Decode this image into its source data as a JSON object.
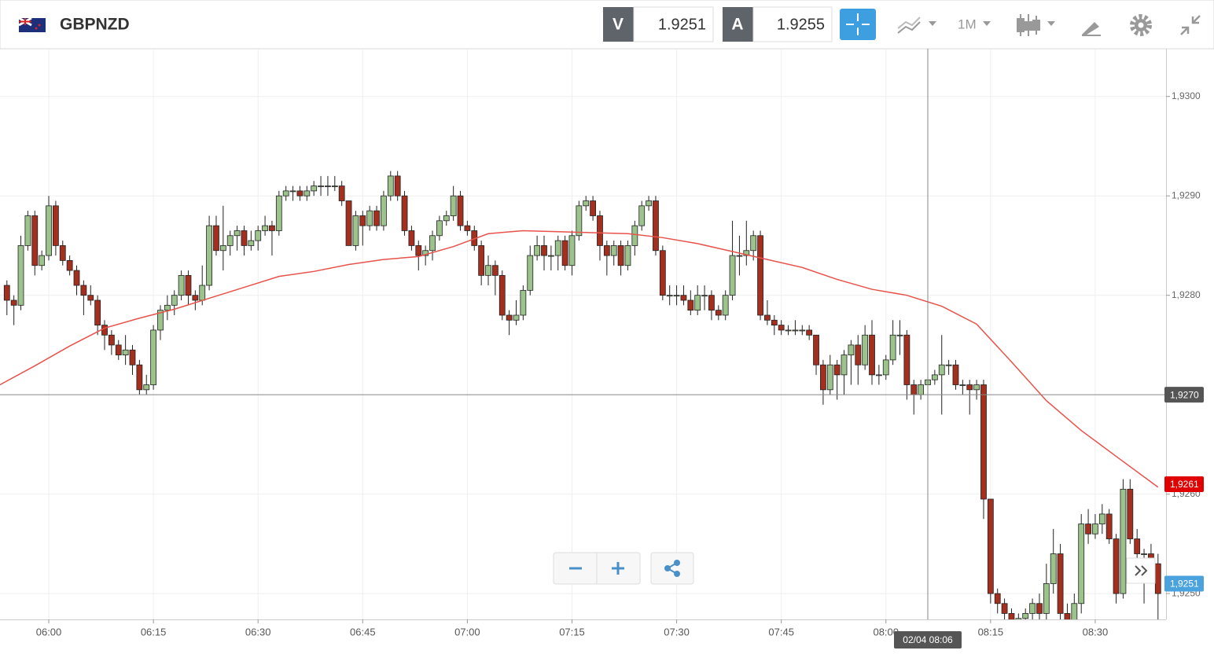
{
  "header": {
    "symbol": "GBPNZD",
    "sell_label": "V",
    "sell_price": 1.9251,
    "buy_label": "A",
    "buy_price": 1.9255,
    "timeframe": "1M"
  },
  "chart_data": {
    "type": "candlestick",
    "x": [
      354,
      355,
      356,
      357,
      358,
      359,
      360,
      361,
      362,
      363,
      364,
      365,
      366,
      367,
      368,
      369,
      370,
      371,
      372,
      373,
      374,
      375,
      376,
      377,
      378,
      379,
      380,
      381,
      382,
      383,
      384,
      385,
      386,
      387,
      388,
      389,
      390,
      391,
      392,
      393,
      394,
      395,
      396,
      397,
      398,
      399,
      400,
      401,
      402,
      403,
      404,
      405,
      406,
      407,
      408,
      409,
      410,
      411,
      412,
      413,
      414,
      415,
      416,
      417,
      418,
      419,
      420,
      421,
      422,
      423,
      424,
      425,
      426,
      427,
      428,
      429,
      430,
      431,
      432,
      433,
      434,
      435,
      436,
      437,
      438,
      439,
      440,
      441,
      442,
      443,
      444,
      445,
      446,
      447,
      448,
      449,
      450,
      451,
      452,
      453,
      454,
      455,
      456,
      457,
      458,
      459,
      460,
      461,
      462,
      463,
      464,
      465,
      466,
      467,
      468,
      469,
      470,
      471,
      472,
      473,
      474,
      475,
      476,
      477,
      478,
      479,
      480,
      481,
      482,
      483,
      484,
      485,
      486,
      487,
      488,
      489,
      490,
      491,
      492,
      493,
      494,
      495,
      496,
      497,
      498,
      499,
      500,
      501,
      502,
      503,
      504,
      505,
      506,
      507,
      508,
      509,
      510,
      511,
      512,
      513,
      514,
      515,
      516,
      517,
      518,
      519
    ],
    "ohlc": [
      [
        1.9281,
        1.92815,
        1.9278,
        1.92795
      ],
      [
        1.92795,
        1.928,
        1.9277,
        1.9279
      ],
      [
        1.9279,
        1.9286,
        1.92785,
        1.9285
      ],
      [
        1.9285,
        1.92885,
        1.92845,
        1.9288
      ],
      [
        1.9288,
        1.92885,
        1.9282,
        1.9283
      ],
      [
        1.9283,
        1.92845,
        1.92825,
        1.9284
      ],
      [
        1.9284,
        1.929,
        1.92835,
        1.9289
      ],
      [
        1.9289,
        1.92895,
        1.9284,
        1.9285
      ],
      [
        1.9285,
        1.92855,
        1.9283,
        1.92835
      ],
      [
        1.92835,
        1.9284,
        1.9282,
        1.92825
      ],
      [
        1.92825,
        1.9283,
        1.928,
        1.9281
      ],
      [
        1.9281,
        1.92815,
        1.9278,
        1.928
      ],
      [
        1.928,
        1.9281,
        1.9279,
        1.92795
      ],
      [
        1.92795,
        1.928,
        1.9276,
        1.9277
      ],
      [
        1.9277,
        1.92775,
        1.92745,
        1.9276
      ],
      [
        1.9276,
        1.92765,
        1.9274,
        1.9275
      ],
      [
        1.9275,
        1.92755,
        1.92735,
        1.9274
      ],
      [
        1.9274,
        1.9276,
        1.9273,
        1.92745
      ],
      [
        1.92745,
        1.9275,
        1.9272,
        1.9273
      ],
      [
        1.9273,
        1.92735,
        1.927,
        1.92705
      ],
      [
        1.92705,
        1.9272,
        1.927,
        1.9271
      ],
      [
        1.9271,
        1.9277,
        1.92705,
        1.92765
      ],
      [
        1.92765,
        1.9279,
        1.92755,
        1.92785
      ],
      [
        1.92785,
        1.928,
        1.92775,
        1.9279
      ],
      [
        1.9279,
        1.92805,
        1.9278,
        1.928
      ],
      [
        1.928,
        1.92825,
        1.92795,
        1.9282
      ],
      [
        1.9282,
        1.92825,
        1.9279,
        1.928
      ],
      [
        1.928,
        1.92805,
        1.92785,
        1.92795
      ],
      [
        1.92795,
        1.9283,
        1.9279,
        1.9281
      ],
      [
        1.9281,
        1.9288,
        1.92805,
        1.9287
      ],
      [
        1.9287,
        1.9288,
        1.9284,
        1.92845
      ],
      [
        1.92845,
        1.9289,
        1.92825,
        1.9285
      ],
      [
        1.9285,
        1.92865,
        1.9284,
        1.9286
      ],
      [
        1.9286,
        1.9287,
        1.92845,
        1.92865
      ],
      [
        1.92865,
        1.9287,
        1.9284,
        1.9285
      ],
      [
        1.9285,
        1.92865,
        1.92845,
        1.92855
      ],
      [
        1.92855,
        1.9287,
        1.92845,
        1.92865
      ],
      [
        1.92865,
        1.9288,
        1.9286,
        1.9287
      ],
      [
        1.9287,
        1.92875,
        1.9284,
        1.92865
      ],
      [
        1.92865,
        1.92905,
        1.9286,
        1.929
      ],
      [
        1.929,
        1.9291,
        1.92895,
        1.92905
      ],
      [
        1.92905,
        1.9291,
        1.92895,
        1.92905
      ],
      [
        1.92905,
        1.9291,
        1.92895,
        1.929
      ],
      [
        1.929,
        1.9291,
        1.92895,
        1.92905
      ],
      [
        1.92905,
        1.92915,
        1.929,
        1.9291
      ],
      [
        1.9291,
        1.9292,
        1.929,
        1.9291
      ],
      [
        1.9291,
        1.9292,
        1.929,
        1.9291
      ],
      [
        1.9291,
        1.9292,
        1.92905,
        1.9291
      ],
      [
        1.9291,
        1.92915,
        1.9289,
        1.92895
      ],
      [
        1.92895,
        1.92895,
        1.9285,
        1.9285
      ],
      [
        1.9285,
        1.92885,
        1.92845,
        1.9288
      ],
      [
        1.9288,
        1.92885,
        1.9285,
        1.9287
      ],
      [
        1.9287,
        1.9289,
        1.92865,
        1.92885
      ],
      [
        1.92885,
        1.9289,
        1.92865,
        1.9287
      ],
      [
        1.9287,
        1.92905,
        1.92865,
        1.929
      ],
      [
        1.929,
        1.92925,
        1.92895,
        1.9292
      ],
      [
        1.9292,
        1.92925,
        1.92895,
        1.929
      ],
      [
        1.929,
        1.92905,
        1.9286,
        1.92865
      ],
      [
        1.92865,
        1.9287,
        1.92845,
        1.9285
      ],
      [
        1.9285,
        1.92855,
        1.92825,
        1.9284
      ],
      [
        1.9284,
        1.9285,
        1.9283,
        1.92845
      ],
      [
        1.92845,
        1.92865,
        1.92835,
        1.9286
      ],
      [
        1.9286,
        1.9288,
        1.92855,
        1.92875
      ],
      [
        1.92875,
        1.92885,
        1.9287,
        1.9288
      ],
      [
        1.9288,
        1.9291,
        1.92875,
        1.929
      ],
      [
        1.929,
        1.92905,
        1.92865,
        1.9287
      ],
      [
        1.9287,
        1.92875,
        1.9286,
        1.92865
      ],
      [
        1.92865,
        1.9287,
        1.92845,
        1.9285
      ],
      [
        1.9285,
        1.92855,
        1.9281,
        1.9282
      ],
      [
        1.9282,
        1.9284,
        1.9281,
        1.9283
      ],
      [
        1.9283,
        1.92835,
        1.928,
        1.9282
      ],
      [
        1.9282,
        1.92825,
        1.92775,
        1.9278
      ],
      [
        1.9278,
        1.92785,
        1.9276,
        1.92775
      ],
      [
        1.92775,
        1.92795,
        1.9277,
        1.9278
      ],
      [
        1.9278,
        1.9281,
        1.92775,
        1.92805
      ],
      [
        1.92805,
        1.9285,
        1.928,
        1.9284
      ],
      [
        1.9284,
        1.9286,
        1.92835,
        1.9285
      ],
      [
        1.9285,
        1.9286,
        1.92825,
        1.9284
      ],
      [
        1.9284,
        1.9285,
        1.92825,
        1.9284
      ],
      [
        1.9284,
        1.9286,
        1.92825,
        1.92855
      ],
      [
        1.92855,
        1.9286,
        1.92825,
        1.9283
      ],
      [
        1.9283,
        1.92865,
        1.9282,
        1.9286
      ],
      [
        1.9286,
        1.92895,
        1.92855,
        1.9289
      ],
      [
        1.9289,
        1.929,
        1.92885,
        1.92895
      ],
      [
        1.92895,
        1.929,
        1.92875,
        1.9288
      ],
      [
        1.9288,
        1.92885,
        1.92835,
        1.9285
      ],
      [
        1.9285,
        1.92855,
        1.9282,
        1.9284
      ],
      [
        1.9284,
        1.92855,
        1.9283,
        1.9285
      ],
      [
        1.9285,
        1.92855,
        1.9282,
        1.9283
      ],
      [
        1.9283,
        1.92855,
        1.92825,
        1.9285
      ],
      [
        1.9285,
        1.92875,
        1.9284,
        1.9287
      ],
      [
        1.9287,
        1.92895,
        1.92865,
        1.9289
      ],
      [
        1.9289,
        1.929,
        1.92885,
        1.92895
      ],
      [
        1.92895,
        1.929,
        1.9284,
        1.92845
      ],
      [
        1.92845,
        1.9285,
        1.92795,
        1.928
      ],
      [
        1.928,
        1.9281,
        1.9279,
        1.928
      ],
      [
        1.928,
        1.9281,
        1.9279,
        1.928
      ],
      [
        1.928,
        1.9281,
        1.9279,
        1.92795
      ],
      [
        1.92795,
        1.92805,
        1.9278,
        1.92785
      ],
      [
        1.92785,
        1.9281,
        1.9278,
        1.928
      ],
      [
        1.928,
        1.9281,
        1.92785,
        1.928
      ],
      [
        1.928,
        1.92805,
        1.92775,
        1.92785
      ],
      [
        1.92785,
        1.9279,
        1.92775,
        1.9278
      ],
      [
        1.9278,
        1.92805,
        1.92775,
        1.928
      ],
      [
        1.928,
        1.92875,
        1.92795,
        1.9284
      ],
      [
        1.9284,
        1.9286,
        1.9282,
        1.9284
      ],
      [
        1.9284,
        1.92875,
        1.9283,
        1.92845
      ],
      [
        1.92845,
        1.92865,
        1.92835,
        1.9286
      ],
      [
        1.9286,
        1.92865,
        1.92775,
        1.9278
      ],
      [
        1.9278,
        1.92795,
        1.9277,
        1.92775
      ],
      [
        1.92775,
        1.9278,
        1.9276,
        1.9277
      ],
      [
        1.9277,
        1.92775,
        1.9276,
        1.92765
      ],
      [
        1.92765,
        1.9277,
        1.9276,
        1.92765
      ],
      [
        1.92765,
        1.92775,
        1.9276,
        1.92765
      ],
      [
        1.92765,
        1.9277,
        1.9276,
        1.92765
      ],
      [
        1.92765,
        1.9277,
        1.92755,
        1.9276
      ],
      [
        1.9276,
        1.9276,
        1.9272,
        1.9273
      ],
      [
        1.9273,
        1.92735,
        1.9269,
        1.92705
      ],
      [
        1.92705,
        1.9274,
        1.927,
        1.9273
      ],
      [
        1.9273,
        1.92735,
        1.92695,
        1.9272
      ],
      [
        1.9272,
        1.92745,
        1.927,
        1.9274
      ],
      [
        1.9274,
        1.92755,
        1.9271,
        1.9275
      ],
      [
        1.9275,
        1.9276,
        1.9271,
        1.9273
      ],
      [
        1.9273,
        1.9277,
        1.92725,
        1.9276
      ],
      [
        1.9276,
        1.92775,
        1.9271,
        1.9272
      ],
      [
        1.9272,
        1.9273,
        1.9271,
        1.9272
      ],
      [
        1.9272,
        1.9274,
        1.92715,
        1.92735
      ],
      [
        1.92735,
        1.92775,
        1.9273,
        1.9276
      ],
      [
        1.9276,
        1.92775,
        1.9274,
        1.9276
      ],
      [
        1.9276,
        1.92765,
        1.92695,
        1.9271
      ],
      [
        1.9271,
        1.92715,
        1.9268,
        1.927
      ],
      [
        1.927,
        1.92715,
        1.92695,
        1.9271
      ],
      [
        1.9271,
        1.9272,
        1.92705,
        1.92715
      ],
      [
        1.92715,
        1.92725,
        1.9271,
        1.9272
      ],
      [
        1.9272,
        1.9276,
        1.9268,
        1.9273
      ],
      [
        1.9273,
        1.92735,
        1.9272,
        1.9273
      ],
      [
        1.9273,
        1.92735,
        1.92705,
        1.9271
      ],
      [
        1.9271,
        1.92715,
        1.927,
        1.9271
      ],
      [
        1.9271,
        1.92715,
        1.9268,
        1.92705
      ],
      [
        1.92705,
        1.92715,
        1.92695,
        1.9271
      ],
      [
        1.9271,
        1.92715,
        1.92575,
        1.92595
      ],
      [
        1.92595,
        1.92595,
        1.9249,
        1.925
      ],
      [
        1.925,
        1.92505,
        1.9248,
        1.9249
      ],
      [
        1.9249,
        1.92495,
        1.9247,
        1.9248
      ],
      [
        1.9248,
        1.92485,
        1.9246,
        1.9247
      ],
      [
        1.9247,
        1.9248,
        1.9246,
        1.92475
      ],
      [
        1.92475,
        1.92485,
        1.9247,
        1.9248
      ],
      [
        1.9248,
        1.92495,
        1.9247,
        1.9249
      ],
      [
        1.9249,
        1.925,
        1.9247,
        1.9248
      ],
      [
        1.9248,
        1.9253,
        1.9247,
        1.9251
      ],
      [
        1.9251,
        1.92565,
        1.925,
        1.9254
      ],
      [
        1.9254,
        1.9255,
        1.9247,
        1.9248
      ],
      [
        1.9248,
        1.9249,
        1.9246,
        1.9247
      ],
      [
        1.9247,
        1.925,
        1.9246,
        1.9249
      ],
      [
        1.9249,
        1.9258,
        1.9248,
        1.9257
      ],
      [
        1.9257,
        1.92585,
        1.9255,
        1.9256
      ],
      [
        1.9256,
        1.9258,
        1.92555,
        1.9257
      ],
      [
        1.9257,
        1.9259,
        1.9256,
        1.9258
      ],
      [
        1.9258,
        1.92585,
        1.9255,
        1.92555
      ],
      [
        1.92555,
        1.9256,
        1.9249,
        1.925
      ],
      [
        1.925,
        1.92615,
        1.92495,
        1.92605
      ],
      [
        1.92605,
        1.92615,
        1.9255,
        1.92555
      ],
      [
        1.92555,
        1.92565,
        1.9253,
        1.9254
      ],
      [
        1.9254,
        1.92545,
        1.9249,
        1.9254
      ],
      [
        1.9254,
        1.9255,
        1.9252,
        1.9253
      ],
      [
        1.9253,
        1.9254,
        1.9247,
        1.925
      ]
    ],
    "up_color": "#9cc38c",
    "down_color": "#a3301f",
    "moving_average": {
      "color": "#e8524a",
      "x": [
        353,
        358,
        363,
        368,
        373,
        378,
        383,
        388,
        393,
        398,
        403,
        408,
        413,
        418,
        423,
        428,
        433,
        438,
        443,
        448,
        453,
        458,
        463,
        468,
        473,
        478,
        483,
        488,
        493,
        498,
        503,
        508,
        513,
        519
      ],
      "values": [
        1.9271,
        1.92729,
        1.92749,
        1.92767,
        1.92777,
        1.92786,
        1.92797,
        1.92808,
        1.92819,
        1.92824,
        1.92831,
        1.92836,
        1.92839,
        1.92849,
        1.92862,
        1.92865,
        1.92864,
        1.92863,
        1.92862,
        1.92858,
        1.92852,
        1.92844,
        1.92836,
        1.92828,
        1.92816,
        1.92806,
        1.928,
        1.92789,
        1.92771,
        1.92733,
        1.92694,
        1.92664,
        1.92638,
        1.92607
      ]
    },
    "xlim": [
      353.01,
      520.15
    ],
    "ylim": [
      1.92474,
      1.93048
    ],
    "xticks": [
      {
        "value": 360,
        "label": "06:00"
      },
      {
        "value": 375,
        "label": "06:15"
      },
      {
        "value": 390,
        "label": "06:30"
      },
      {
        "value": 405,
        "label": "06:45"
      },
      {
        "value": 420,
        "label": "07:00"
      },
      {
        "value": 435,
        "label": "07:15"
      },
      {
        "value": 450,
        "label": "07:30"
      },
      {
        "value": 465,
        "label": "07:45"
      },
      {
        "value": 480,
        "label": "08:00"
      },
      {
        "value": 495,
        "label": "08:15"
      },
      {
        "value": 510,
        "label": "08:30"
      }
    ],
    "yticks": [
      {
        "value": 1.925,
        "label": "1,9250"
      },
      {
        "value": 1.926,
        "label": "1,9260"
      },
      {
        "value": 1.927,
        "label": "1,9270"
      },
      {
        "value": 1.928,
        "label": "1,9280"
      },
      {
        "value": 1.929,
        "label": "1,9290"
      },
      {
        "value": 1.93,
        "label": "1,9300"
      }
    ],
    "grid": true,
    "crosshair": {
      "x": {
        "value": 486,
        "label": "02/04 08:06"
      },
      "y": {
        "value": 1.927,
        "label": "1,9270"
      }
    },
    "price_labels": [
      {
        "value": 1.9261,
        "label": "1,9261",
        "color": "#e00000"
      },
      {
        "value": 1.9251,
        "label": "1,9251",
        "color": "#4aa3df"
      }
    ]
  }
}
